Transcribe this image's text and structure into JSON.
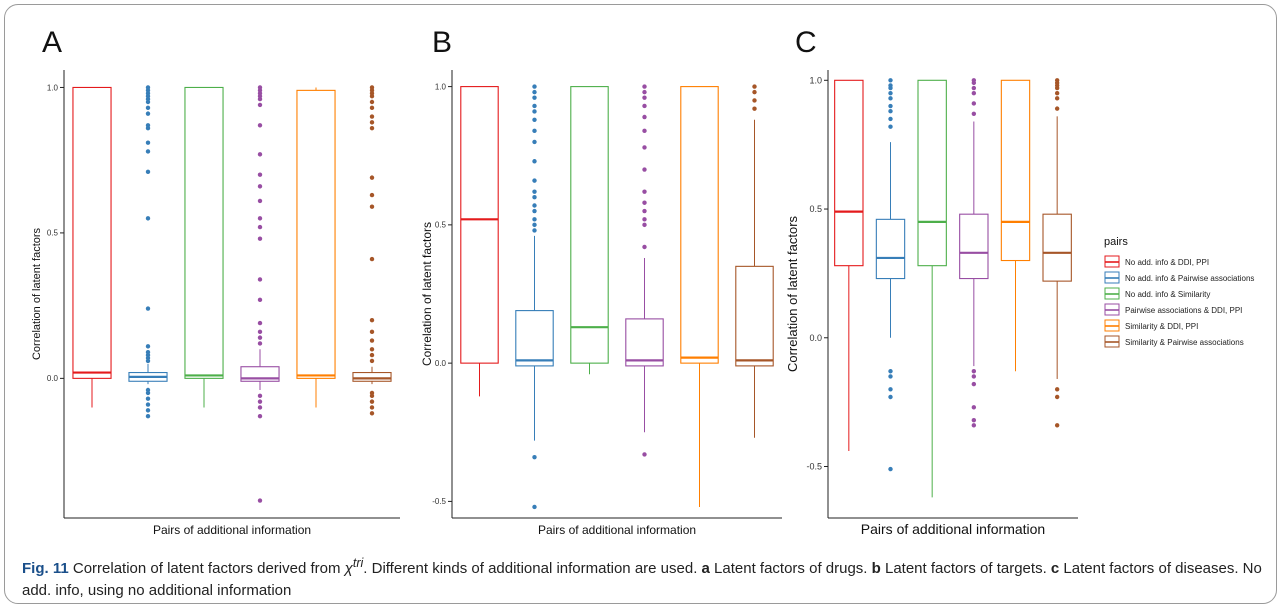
{
  "chart_data": [
    {
      "type": "box",
      "panel_label": "A",
      "xlabel": "Pairs of additional information",
      "ylabel": "Correlation of latent factors",
      "ylim": [
        -0.48,
        1.06
      ],
      "yticks": [
        0.0,
        0.5,
        1.0
      ],
      "ytick_labels": [
        "0.0",
        "0.5",
        "1.0"
      ],
      "grid": false,
      "boxes": [
        {
          "series": 0,
          "whisker_low": -0.1,
          "q1": 0.0,
          "median": 0.02,
          "q3": 1.0,
          "whisker_high": 1.0,
          "outliers": []
        },
        {
          "series": 1,
          "whisker_low": -0.02,
          "q1": -0.01,
          "median": 0.005,
          "q3": 0.02,
          "whisker_high": 0.05,
          "outliers": [
            -0.13,
            -0.11,
            -0.09,
            -0.07,
            -0.05,
            -0.04,
            0.06,
            0.07,
            0.08,
            0.09,
            0.11,
            0.24,
            0.55,
            0.71,
            0.78,
            0.81,
            0.86,
            0.87,
            0.91,
            0.93,
            0.95,
            0.96,
            0.97,
            0.98,
            0.99,
            1.0
          ]
        },
        {
          "series": 2,
          "whisker_low": -0.1,
          "q1": 0.0,
          "median": 0.01,
          "q3": 1.0,
          "whisker_high": 1.0,
          "outliers": []
        },
        {
          "series": 3,
          "whisker_low": -0.04,
          "q1": -0.01,
          "median": 0.0,
          "q3": 0.04,
          "whisker_high": 0.1,
          "outliers": [
            -0.42,
            -0.13,
            -0.1,
            -0.08,
            -0.06,
            0.12,
            0.14,
            0.16,
            0.19,
            0.27,
            0.34,
            0.48,
            0.52,
            0.55,
            0.61,
            0.66,
            0.7,
            0.77,
            0.87,
            0.94,
            0.96,
            0.97,
            0.98,
            0.99,
            1.0
          ]
        },
        {
          "series": 4,
          "whisker_low": -0.1,
          "q1": 0.0,
          "median": 0.01,
          "q3": 0.99,
          "whisker_high": 1.0,
          "outliers": []
        },
        {
          "series": 5,
          "whisker_low": -0.02,
          "q1": -0.01,
          "median": 0.0,
          "q3": 0.02,
          "whisker_high": 0.04,
          "outliers": [
            -0.12,
            -0.1,
            -0.08,
            -0.06,
            -0.05,
            0.06,
            0.08,
            0.1,
            0.13,
            0.16,
            0.2,
            0.41,
            0.59,
            0.63,
            0.69,
            0.86,
            0.88,
            0.9,
            0.93,
            0.95,
            0.97,
            0.98,
            0.99,
            1.0
          ]
        }
      ]
    },
    {
      "type": "box",
      "panel_label": "B",
      "xlabel": "Pairs of additional information",
      "ylabel": "Correlation of latent factors",
      "ylim": [
        -0.56,
        1.06
      ],
      "yticks": [
        -0.5,
        0.0,
        0.5,
        1.0
      ],
      "ytick_labels": [
        "-0.5",
        "0.0",
        "0.5",
        "1.0"
      ],
      "grid": false,
      "boxes": [
        {
          "series": 0,
          "whisker_low": -0.12,
          "q1": 0.0,
          "median": 0.52,
          "q3": 1.0,
          "whisker_high": 1.0,
          "outliers": []
        },
        {
          "series": 1,
          "whisker_low": -0.28,
          "q1": -0.01,
          "median": 0.01,
          "q3": 0.19,
          "whisker_high": 0.46,
          "outliers": [
            -0.52,
            -0.34,
            0.48,
            0.5,
            0.52,
            0.55,
            0.57,
            0.6,
            0.62,
            0.66,
            0.73,
            0.8,
            0.84,
            0.88,
            0.91,
            0.93,
            0.96,
            0.98,
            1.0
          ]
        },
        {
          "series": 2,
          "whisker_low": -0.04,
          "q1": 0.0,
          "median": 0.13,
          "q3": 1.0,
          "whisker_high": 1.0,
          "outliers": []
        },
        {
          "series": 3,
          "whisker_low": -0.25,
          "q1": -0.01,
          "median": 0.01,
          "q3": 0.16,
          "whisker_high": 0.38,
          "outliers": [
            -0.33,
            0.42,
            0.5,
            0.52,
            0.55,
            0.58,
            0.62,
            0.7,
            0.78,
            0.84,
            0.89,
            0.93,
            0.96,
            0.98,
            1.0
          ]
        },
        {
          "series": 4,
          "whisker_low": -0.52,
          "q1": 0.0,
          "median": 0.02,
          "q3": 1.0,
          "whisker_high": 1.0,
          "outliers": []
        },
        {
          "series": 5,
          "whisker_low": -0.27,
          "q1": -0.01,
          "median": 0.01,
          "q3": 0.35,
          "whisker_high": 0.88,
          "outliers": [
            0.92,
            0.95,
            0.98,
            1.0
          ]
        }
      ]
    },
    {
      "type": "box",
      "panel_label": "C",
      "xlabel": "Pairs of additional information",
      "ylabel": "Correlation of latent factors",
      "ylim": [
        -0.7,
        1.04
      ],
      "yticks": [
        -0.5,
        0.0,
        0.5,
        1.0
      ],
      "ytick_labels": [
        "-0.5",
        "0.0",
        "0.5",
        "1.0"
      ],
      "grid": false,
      "boxes": [
        {
          "series": 0,
          "whisker_low": -0.44,
          "q1": 0.28,
          "median": 0.49,
          "q3": 1.0,
          "whisker_high": 1.0,
          "outliers": []
        },
        {
          "series": 1,
          "whisker_low": 0.0,
          "q1": 0.23,
          "median": 0.31,
          "q3": 0.46,
          "whisker_high": 0.76,
          "outliers": [
            -0.51,
            -0.23,
            -0.2,
            -0.15,
            -0.13,
            0.82,
            0.85,
            0.88,
            0.9,
            0.93,
            0.95,
            0.97,
            0.98,
            1.0
          ]
        },
        {
          "series": 2,
          "whisker_low": -0.62,
          "q1": 0.28,
          "median": 0.45,
          "q3": 1.0,
          "whisker_high": 1.0,
          "outliers": []
        },
        {
          "series": 3,
          "whisker_low": -0.11,
          "q1": 0.23,
          "median": 0.33,
          "q3": 0.48,
          "whisker_high": 0.84,
          "outliers": [
            -0.34,
            -0.32,
            -0.27,
            -0.18,
            -0.15,
            -0.13,
            0.87,
            0.91,
            0.95,
            0.97,
            0.99,
            1.0
          ]
        },
        {
          "series": 4,
          "whisker_low": -0.13,
          "q1": 0.3,
          "median": 0.45,
          "q3": 1.0,
          "whisker_high": 1.0,
          "outliers": []
        },
        {
          "series": 5,
          "whisker_low": -0.16,
          "q1": 0.22,
          "median": 0.33,
          "q3": 0.48,
          "whisker_high": 0.86,
          "outliers": [
            -0.34,
            -0.23,
            -0.2,
            0.89,
            0.93,
            0.95,
            0.97,
            0.98,
            0.99,
            1.0
          ]
        }
      ]
    }
  ],
  "legend": {
    "title": "pairs",
    "placement": "right",
    "items": [
      {
        "label": "No add. info & DDI, PPI",
        "color": "#E41A1C"
      },
      {
        "label": "No add. info & Pairwise associations",
        "color": "#377EB8"
      },
      {
        "label": "No add. info & Similarity",
        "color": "#4DAF4A"
      },
      {
        "label": "Pairwise associations & DDI, PPI",
        "color": "#984EA3"
      },
      {
        "label": "Similarity & DDI, PPI",
        "color": "#FF7F00"
      },
      {
        "label": "Similarity & Pairwise associations",
        "color": "#A65628"
      }
    ]
  },
  "caption": {
    "fig_label": "Fig. 11",
    "text_1": " Correlation of latent factors derived from ",
    "symbol": "χ",
    "superscript": "tri",
    "text_2": ". Different kinds of additional information are used. ",
    "a": "a",
    "a_text": " Latent factors of drugs. ",
    "b": "b",
    "b_text": " Latent factors of targets. ",
    "c": "c",
    "c_text": " Latent factors of diseases. No add. info, using no additional information"
  }
}
